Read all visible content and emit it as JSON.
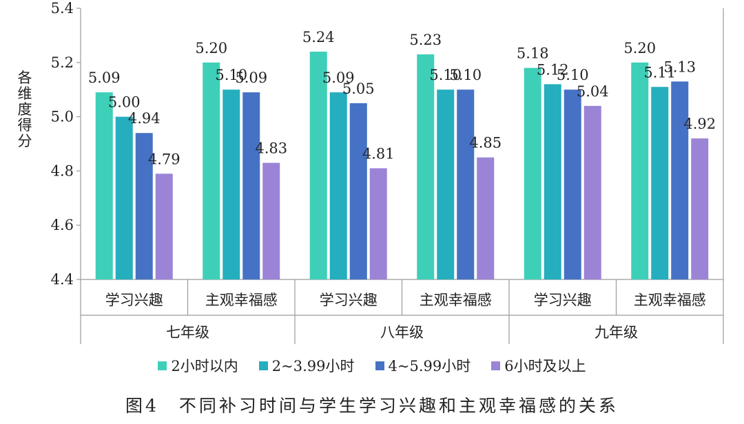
{
  "chart_data": {
    "type": "bar",
    "ylabel": "各维度得分",
    "ylim": [
      4.4,
      5.4
    ],
    "yticks": [
      "4.4",
      "4.6",
      "4.8",
      "5.0",
      "5.2",
      "5.4"
    ],
    "groups": [
      "七年级",
      "八年级",
      "九年级"
    ],
    "categories": [
      "学习兴趣",
      "主观幸福感",
      "学习兴趣",
      "主观幸福感",
      "学习兴趣",
      "主观幸福感"
    ],
    "series": [
      {
        "name": "2小时以内",
        "color": "#3ecfb8",
        "values": [
          5.09,
          5.2,
          5.24,
          5.23,
          5.18,
          5.2
        ]
      },
      {
        "name": "2~3.99小时",
        "color": "#25aebd",
        "values": [
          5.0,
          5.1,
          5.09,
          5.1,
          5.12,
          5.11
        ]
      },
      {
        "name": "4~5.99小时",
        "color": "#4572c4",
        "values": [
          4.94,
          5.09,
          5.05,
          5.1,
          5.1,
          5.13
        ]
      },
      {
        "name": "6小时及以上",
        "color": "#9b84d6",
        "values": [
          4.79,
          4.83,
          4.81,
          4.85,
          5.04,
          4.92
        ]
      }
    ],
    "labels": [
      [
        "5.09",
        "5.20",
        "5.24",
        "5.23",
        "5.18",
        "5.20"
      ],
      [
        "5.00",
        "5.10",
        "5.09",
        "5.10",
        "5.12",
        "5.11"
      ],
      [
        "4.94",
        "5.09",
        "5.05",
        "5.10",
        "5.10",
        "5.13"
      ],
      [
        "4.79",
        "4.83",
        "4.81",
        "4.85",
        "5.04",
        "4.92"
      ]
    ],
    "grid": false,
    "legend": "bottom"
  },
  "caption": "图4　不同补习时间与学生学习兴趣和主观幸福感的关系"
}
